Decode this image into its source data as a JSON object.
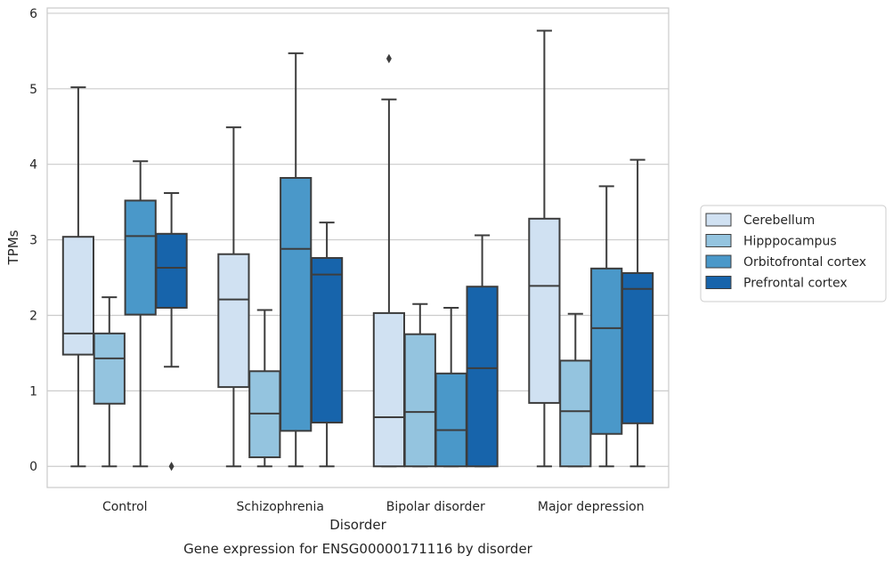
{
  "chart_data": {
    "type": "box",
    "caption": "Gene expression for ENSG00000171116 by disorder",
    "xlabel": "Disorder",
    "ylabel": "TPMs",
    "ylim": [
      -0.28,
      6.07
    ],
    "yticks": [
      0,
      1,
      2,
      3,
      4,
      5,
      6
    ],
    "grid": "y",
    "legend_position": "right",
    "categories": [
      "Control",
      "Schizophrenia",
      "Bipolar disorder",
      "Major depression"
    ],
    "series": [
      {
        "name": "Cerebellum",
        "color": "#d0e1f2",
        "boxes": [
          {
            "whislo": 0,
            "q1": 1.48,
            "med": 1.76,
            "q3": 3.04,
            "whishi": 5.02,
            "fliers": []
          },
          {
            "whislo": 0,
            "q1": 1.05,
            "med": 2.21,
            "q3": 2.81,
            "whishi": 4.49,
            "fliers": []
          },
          {
            "whislo": 0,
            "q1": 0,
            "med": 0.65,
            "q3": 2.03,
            "whishi": 4.86,
            "fliers": [
              5.4
            ]
          },
          {
            "whislo": 0,
            "q1": 0.84,
            "med": 2.39,
            "q3": 3.28,
            "whishi": 5.77,
            "fliers": []
          }
        ]
      },
      {
        "name": "Hipppocampus",
        "color": "#94c4df",
        "boxes": [
          {
            "whislo": 0,
            "q1": 0.83,
            "med": 1.43,
            "q3": 1.76,
            "whishi": 2.24,
            "fliers": []
          },
          {
            "whislo": 0,
            "q1": 0.12,
            "med": 0.7,
            "q3": 1.26,
            "whishi": 2.07,
            "fliers": []
          },
          {
            "whislo": 0,
            "q1": 0,
            "med": 0.72,
            "q3": 1.75,
            "whishi": 2.15,
            "fliers": []
          },
          {
            "whislo": 0,
            "q1": 0,
            "med": 0.73,
            "q3": 1.4,
            "whishi": 2.02,
            "fliers": []
          }
        ]
      },
      {
        "name": "Orbitofrontal cortex",
        "color": "#4a98c9",
        "boxes": [
          {
            "whislo": 0,
            "q1": 2.01,
            "med": 3.05,
            "q3": 3.52,
            "whishi": 4.04,
            "fliers": []
          },
          {
            "whislo": 0,
            "q1": 0.47,
            "med": 2.88,
            "q3": 3.82,
            "whishi": 5.47,
            "fliers": []
          },
          {
            "whislo": 0,
            "q1": 0,
            "med": 0.48,
            "q3": 1.23,
            "whishi": 2.1,
            "fliers": []
          },
          {
            "whislo": 0,
            "q1": 0.43,
            "med": 1.83,
            "q3": 2.62,
            "whishi": 3.71,
            "fliers": []
          }
        ]
      },
      {
        "name": "Prefrontal cortex",
        "color": "#1764ab",
        "boxes": [
          {
            "whislo": 1.32,
            "q1": 2.1,
            "med": 2.63,
            "q3": 3.08,
            "whishi": 3.62,
            "fliers": [
              0
            ]
          },
          {
            "whislo": 0,
            "q1": 0.58,
            "med": 2.54,
            "q3": 2.76,
            "whishi": 3.23,
            "fliers": []
          },
          {
            "whislo": 0,
            "q1": 0,
            "med": 1.3,
            "q3": 2.38,
            "whishi": 3.06,
            "fliers": []
          },
          {
            "whislo": 0,
            "q1": 0.57,
            "med": 2.35,
            "q3": 2.56,
            "whishi": 4.06,
            "fliers": []
          }
        ]
      }
    ]
  }
}
